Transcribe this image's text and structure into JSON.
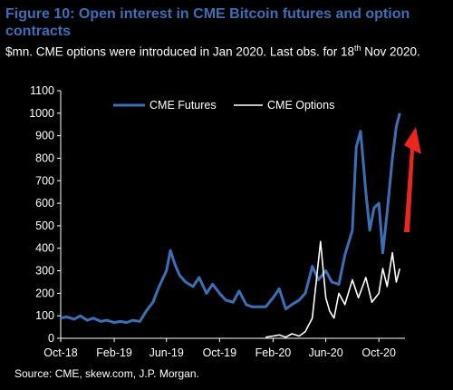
{
  "header": {
    "title": "Figure 10: Open interest in CME Bitcoin futures and option contracts",
    "subtitle_pre": "$mn. CME options were introduced in Jan 2020. Last obs. for 18",
    "subtitle_sup": "th",
    "subtitle_post": " Nov 2020."
  },
  "footer": {
    "source": "Source: CME, skew.com, J.P. Morgan."
  },
  "colors": {
    "futures": "#3d6fb6",
    "options": "#ffffff",
    "arrow": "#e8281e",
    "axis": "#ffffff"
  },
  "chart_data": {
    "type": "line",
    "title": "Figure 10: Open interest in CME Bitcoin futures and option contracts",
    "unit": "$mn",
    "ylim": [
      0,
      1100
    ],
    "y_ticks": [
      0,
      100,
      200,
      300,
      400,
      500,
      600,
      700,
      800,
      900,
      1000,
      1100
    ],
    "x_range": [
      "2018-10-01",
      "2020-11-30"
    ],
    "x_ticks": [
      {
        "date": "2018-10-01",
        "label": "Oct-18"
      },
      {
        "date": "2019-02-01",
        "label": "Feb-19"
      },
      {
        "date": "2019-06-01",
        "label": "Jun-19"
      },
      {
        "date": "2019-10-01",
        "label": "Oct-19"
      },
      {
        "date": "2020-02-01",
        "label": "Feb-20"
      },
      {
        "date": "2020-06-01",
        "label": "Jun-20"
      },
      {
        "date": "2020-10-01",
        "label": "Oct-20"
      }
    ],
    "grid": false,
    "legend": "top",
    "annotation": "red upward arrow at right edge",
    "series": [
      {
        "name": "CME Futures",
        "x": [
          "2018-10-01",
          "2018-10-15",
          "2018-11-01",
          "2018-11-15",
          "2018-12-01",
          "2018-12-15",
          "2019-01-01",
          "2019-01-15",
          "2019-02-01",
          "2019-02-15",
          "2019-03-01",
          "2019-03-15",
          "2019-04-01",
          "2019-04-15",
          "2019-05-01",
          "2019-05-15",
          "2019-06-01",
          "2019-06-10",
          "2019-06-20",
          "2019-07-01",
          "2019-07-15",
          "2019-08-01",
          "2019-08-15",
          "2019-09-01",
          "2019-09-15",
          "2019-10-01",
          "2019-10-15",
          "2019-11-01",
          "2019-11-15",
          "2019-12-01",
          "2019-12-15",
          "2020-01-01",
          "2020-01-15",
          "2020-02-01",
          "2020-02-15",
          "2020-03-01",
          "2020-03-15",
          "2020-04-01",
          "2020-04-15",
          "2020-05-01",
          "2020-05-15",
          "2020-06-01",
          "2020-06-15",
          "2020-07-01",
          "2020-07-15",
          "2020-08-01",
          "2020-08-10",
          "2020-08-20",
          "2020-09-01",
          "2020-09-10",
          "2020-09-20",
          "2020-10-01",
          "2020-10-10",
          "2020-10-20",
          "2020-11-01",
          "2020-11-10",
          "2020-11-18"
        ],
        "values": [
          90,
          95,
          85,
          100,
          80,
          90,
          75,
          80,
          70,
          75,
          70,
          80,
          75,
          120,
          160,
          230,
          300,
          390,
          330,
          280,
          250,
          230,
          270,
          200,
          240,
          200,
          170,
          160,
          210,
          150,
          140,
          140,
          140,
          180,
          220,
          130,
          150,
          170,
          200,
          320,
          260,
          300,
          250,
          240,
          370,
          480,
          850,
          920,
          650,
          480,
          580,
          600,
          380,
          560,
          800,
          940,
          1000
        ]
      },
      {
        "name": "CME Options",
        "x": [
          "2020-01-15",
          "2020-02-01",
          "2020-02-15",
          "2020-03-01",
          "2020-03-15",
          "2020-04-01",
          "2020-04-15",
          "2020-05-01",
          "2020-05-10",
          "2020-05-20",
          "2020-06-01",
          "2020-06-10",
          "2020-06-20",
          "2020-07-01",
          "2020-07-15",
          "2020-08-01",
          "2020-08-15",
          "2020-09-01",
          "2020-09-15",
          "2020-10-01",
          "2020-10-10",
          "2020-10-20",
          "2020-11-01",
          "2020-11-10",
          "2020-11-18"
        ],
        "values": [
          5,
          10,
          15,
          5,
          20,
          10,
          30,
          90,
          250,
          430,
          180,
          120,
          90,
          200,
          150,
          260,
          180,
          270,
          160,
          200,
          310,
          230,
          380,
          250,
          310
        ]
      }
    ]
  }
}
